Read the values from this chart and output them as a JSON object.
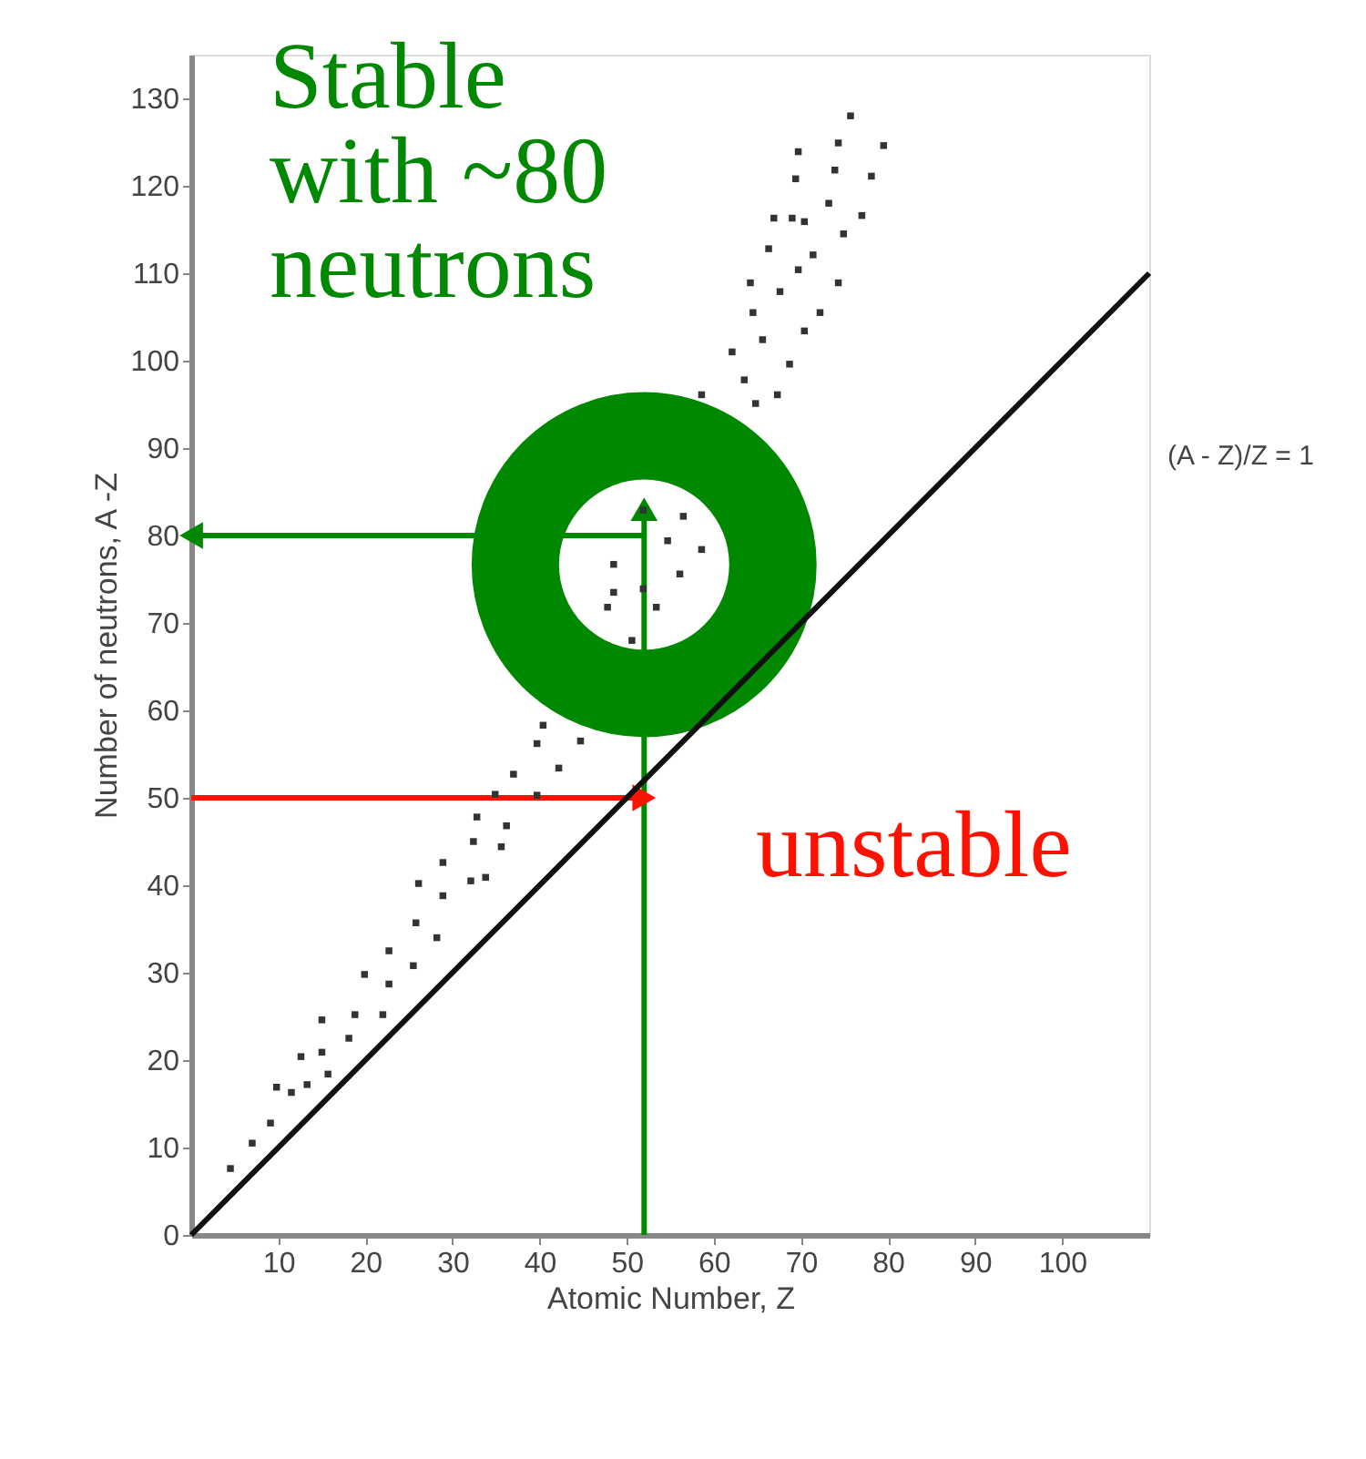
{
  "chart_data": {
    "type": "scatter",
    "xlabel": "Atomic Number, Z",
    "ylabel": "Number of neutrons, A -Z",
    "xlim": [
      0,
      110
    ],
    "ylim": [
      0,
      135
    ],
    "xticks": [
      10,
      20,
      30,
      40,
      50,
      60,
      70,
      80,
      90,
      100
    ],
    "yticks": [
      0,
      10,
      20,
      30,
      40,
      50,
      60,
      70,
      80,
      90,
      100,
      110,
      120,
      130
    ],
    "grid": false,
    "series": [
      {
        "color": "#333333",
        "marker": "square",
        "x": [
          4.5,
          7,
          9.1,
          9.8,
          11.5,
          12.6,
          13.3,
          15,
          15,
          15.7,
          18.1,
          18.8,
          19.9,
          22,
          22.7,
          22.7,
          25.5,
          25.8,
          26.1,
          28.2,
          28.9,
          28.9,
          32.1,
          32.4,
          32.8,
          33.8,
          35.6,
          36.2,
          34.9,
          37,
          39.7,
          39.7,
          40.4,
          42.2,
          44.7,
          51.9,
          56.5,
          54.7,
          58.6,
          48.5,
          56.1,
          48.5,
          51.9,
          47.8,
          53.4,
          50.6,
          58.6,
          64.8,
          67.3,
          63.5,
          68.7,
          62.1,
          65.6,
          70.4,
          64.5,
          67.6,
          72.2,
          74.3,
          64.2,
          66.3,
          69.7,
          71.4,
          69,
          66.9,
          70.4,
          74.9,
          77,
          73.2,
          69.4,
          73.9,
          78.1,
          69.7,
          74.3,
          79.5,
          75.7
        ],
        "values": [
          7.6,
          10.5,
          12.8,
          16.9,
          16.3,
          20.4,
          17.2,
          24.6,
          20.9,
          18.4,
          22.5,
          25.2,
          29.8,
          25.2,
          28.7,
          32.5,
          30.8,
          35.7,
          40.2,
          34,
          38.8,
          42.6,
          40.5,
          45,
          47.8,
          40.9,
          44.4,
          46.8,
          50.4,
          52.7,
          50.3,
          56.2,
          58.3,
          53.4,
          56.5,
          82.9,
          82.2,
          79.4,
          78.4,
          76.7,
          75.6,
          73.5,
          73.9,
          71.8,
          71.8,
          68,
          96.1,
          95.1,
          96.1,
          97.8,
          99.6,
          101,
          102.4,
          103.4,
          105.5,
          107.9,
          105.5,
          108.9,
          108.9,
          112.8,
          110.4,
          112.1,
          116.3,
          116.3,
          115.9,
          114.5,
          116.6,
          118,
          120.8,
          121.8,
          121.1,
          123.9,
          124.9,
          124.6,
          128
        ]
      },
      {
        "type": "line",
        "name": "(A - Z)/Z = 1",
        "color": "#111111",
        "marker": "none",
        "x": [
          0,
          110
        ],
        "values": [
          0,
          110
        ]
      },
      {
        "type": "line",
        "color": "#008800",
        "marker": "triangle",
        "x": [
          52,
          52
        ],
        "values": [
          0,
          83
        ]
      },
      {
        "type": "line",
        "color": "#008800",
        "marker": "triangle",
        "x": [
          52,
          0
        ],
        "values": [
          80,
          80
        ]
      },
      {
        "type": "line",
        "color": "#ff1100",
        "marker": "triangle",
        "x": [
          0,
          52
        ],
        "values": [
          50,
          50
        ]
      }
    ],
    "annotations": [
      "Stable\nwith ~80\nneutrons",
      "unstable"
    ]
  }
}
